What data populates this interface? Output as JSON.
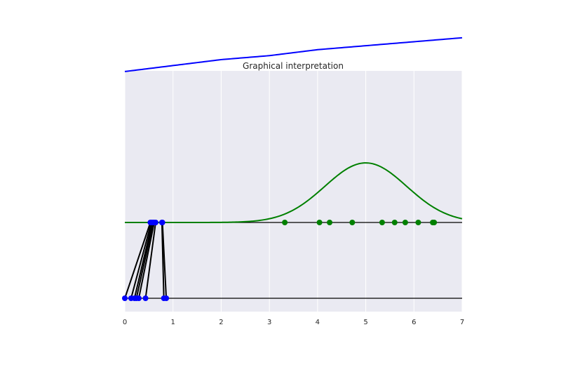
{
  "chart_data": {
    "type": "line",
    "title": "Graphical interpretation",
    "xlabel": "",
    "ylabel": "",
    "xlim": [
      0,
      7
    ],
    "xticks": [
      "0",
      "1",
      "2",
      "3",
      "4",
      "5",
      "6",
      "7"
    ],
    "grid": true,
    "legend": "none",
    "colors": {
      "background": "#eaeaf2",
      "grid": "#ffffff",
      "blue": "#0000ff",
      "green": "#008000",
      "black": "#000000"
    },
    "curves": [
      {
        "id": "blue-curve",
        "color": "#0000ff",
        "description_values": {
          "x": [
            0,
            1,
            2,
            3,
            4,
            5,
            6,
            7
          ],
          "y": [
            0.76,
            0.79,
            0.82,
            0.84,
            0.87,
            0.89,
            0.91,
            0.93
          ]
        }
      },
      {
        "id": "green-gaussian",
        "color": "#008000",
        "mean": 5,
        "sd": 0.85,
        "peak": 0.3
      }
    ],
    "green_points_x": [
      3.32,
      4.04,
      4.25,
      4.72,
      5.34,
      5.6,
      5.82,
      6.09,
      6.39,
      6.42
    ],
    "blue_points": [
      {
        "bottom_x": 0.0,
        "top_x": 0.53
      },
      {
        "bottom_x": 0.13,
        "top_x": 0.55
      },
      {
        "bottom_x": 0.2,
        "top_x": 0.57
      },
      {
        "bottom_x": 0.24,
        "top_x": 0.59
      },
      {
        "bottom_x": 0.29,
        "top_x": 0.61
      },
      {
        "bottom_x": 0.43,
        "top_x": 0.64
      },
      {
        "bottom_x": 0.81,
        "top_x": 0.77
      },
      {
        "bottom_x": 0.86,
        "top_x": 0.78
      }
    ]
  }
}
